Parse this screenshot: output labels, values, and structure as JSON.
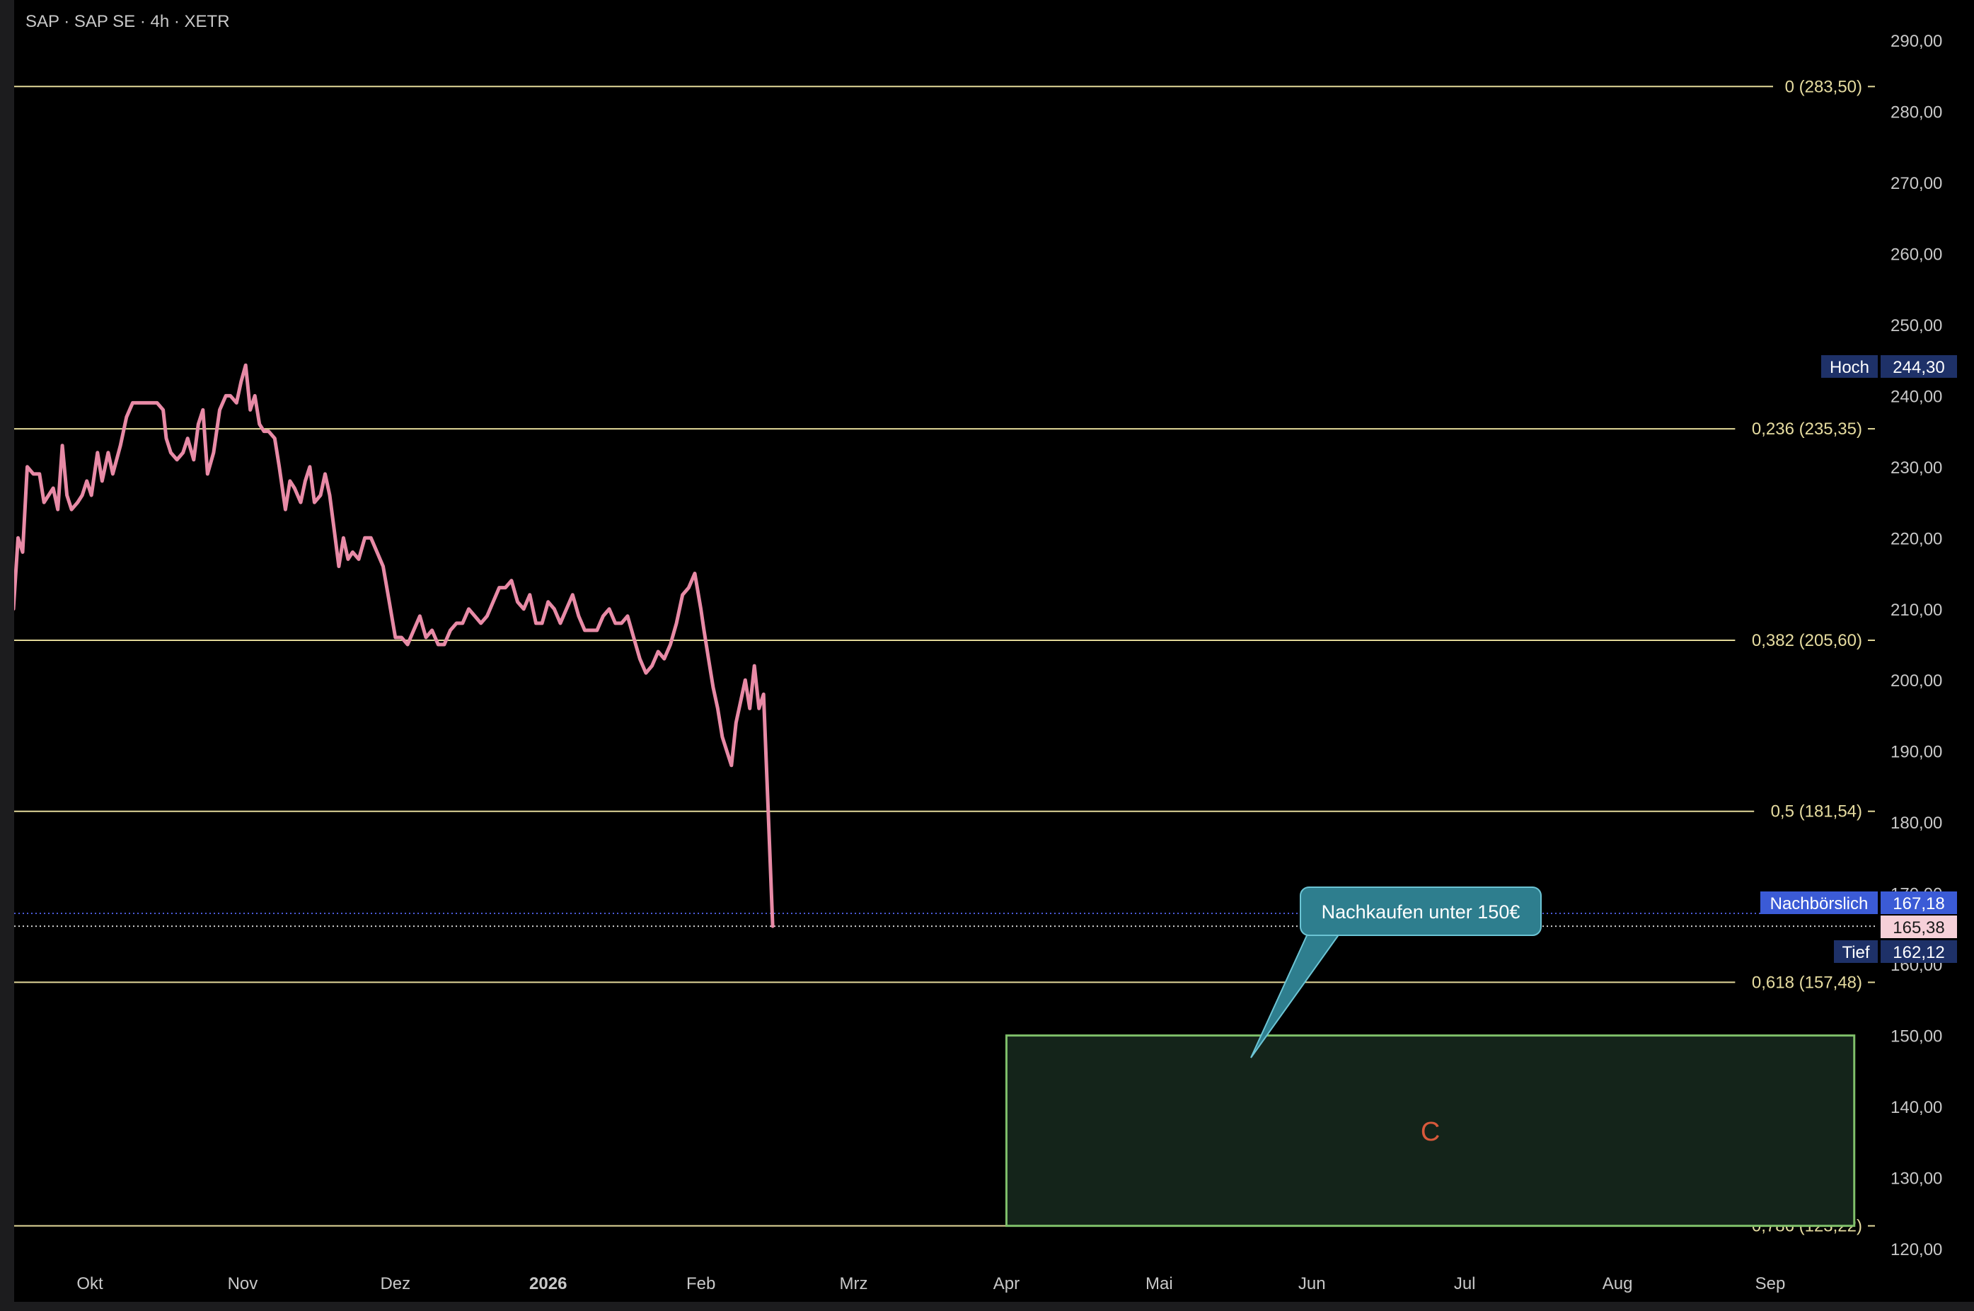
{
  "header": {
    "title": "SAP · SAP SE · 4h · XETR"
  },
  "colors": {
    "price_line": "#e88aa6",
    "fib_line": "#e3d99a",
    "zone_fill": "#14241a",
    "zone_border": "#7fbf6a",
    "callout_fill": "#2e7e8e",
    "callout_border": "#6cc4d4",
    "hoch_badge": "#1e3168",
    "tief_badge": "#1e3168",
    "nach_badge": "#3b5bd6",
    "last_badge": "#f6d0d8"
  },
  "price_badges": {
    "hoch": {
      "label": "Hoch",
      "value": "244,30"
    },
    "nachboerslich": {
      "label": "Nachbörslich",
      "value": "167,18"
    },
    "last": {
      "value": "165,38"
    },
    "tief": {
      "label": "Tief",
      "value": "162,12"
    }
  },
  "annotations": {
    "callout": "Nachkaufen unter 150€",
    "zone_label": "C"
  },
  "chart_data": {
    "type": "line",
    "title": "SAP · SAP SE · 4h · XETR",
    "ylim": [
      116,
      294
    ],
    "y_ticks": [
      "290,00",
      "280,00",
      "270,00",
      "260,00",
      "250,00",
      "240,00",
      "230,00",
      "220,00",
      "210,00",
      "200,00",
      "190,00",
      "180,00",
      "170,00",
      "160,00",
      "150,00",
      "140,00",
      "130,00",
      "120,00"
    ],
    "x_ticks": [
      {
        "label": "Okt",
        "t": 0.5
      },
      {
        "label": "Nov",
        "t": 1.5
      },
      {
        "label": "Dez",
        "t": 2.5
      },
      {
        "label": "2026",
        "t": 3.5
      },
      {
        "label": "Feb",
        "t": 4.5
      },
      {
        "label": "Mrz",
        "t": 5.5
      },
      {
        "label": "Apr",
        "t": 6.5
      },
      {
        "label": "Mai",
        "t": 7.5
      },
      {
        "label": "Jun",
        "t": 8.5
      },
      {
        "label": "Jul",
        "t": 9.5
      },
      {
        "label": "Aug",
        "t": 10.5
      },
      {
        "label": "Sep",
        "t": 11.5
      }
    ],
    "fib_levels": [
      {
        "label": "0 (283,50)",
        "value": 283.5
      },
      {
        "label": "0,236 (235,35)",
        "value": 235.35
      },
      {
        "label": "0,382 (205,60)",
        "value": 205.6
      },
      {
        "label": "0,5 (181,54)",
        "value": 181.54
      },
      {
        "label": "0,618 (157,48)",
        "value": 157.48
      },
      {
        "label": "0,786 (123,22)",
        "value": 123.22
      }
    ],
    "last_price": 165.38,
    "after_hours_price": 167.18,
    "zone": {
      "t_start": 6.5,
      "t_end": 12.05,
      "y_top": 150.0,
      "y_bottom": 123.22
    },
    "callout_point": {
      "t": 8.35,
      "y": 147
    },
    "series": [
      {
        "points": [
          [
            0.0,
            210
          ],
          [
            0.03,
            220
          ],
          [
            0.06,
            218
          ],
          [
            0.09,
            230
          ],
          [
            0.13,
            229
          ],
          [
            0.17,
            229
          ],
          [
            0.2,
            225
          ],
          [
            0.23,
            226
          ],
          [
            0.26,
            227
          ],
          [
            0.29,
            224
          ],
          [
            0.32,
            233
          ],
          [
            0.35,
            226
          ],
          [
            0.38,
            224
          ],
          [
            0.42,
            225
          ],
          [
            0.45,
            226
          ],
          [
            0.48,
            228
          ],
          [
            0.51,
            226
          ],
          [
            0.55,
            232
          ],
          [
            0.58,
            228
          ],
          [
            0.62,
            232
          ],
          [
            0.65,
            229
          ],
          [
            0.7,
            233
          ],
          [
            0.74,
            237
          ],
          [
            0.78,
            239
          ],
          [
            0.82,
            239
          ],
          [
            0.86,
            239
          ],
          [
            0.9,
            239
          ],
          [
            0.94,
            239
          ],
          [
            0.98,
            238
          ],
          [
            1.0,
            234
          ],
          [
            1.03,
            232
          ],
          [
            1.07,
            231
          ],
          [
            1.11,
            232
          ],
          [
            1.14,
            234
          ],
          [
            1.18,
            231
          ],
          [
            1.21,
            236
          ],
          [
            1.24,
            238
          ],
          [
            1.27,
            229
          ],
          [
            1.31,
            232
          ],
          [
            1.35,
            238
          ],
          [
            1.39,
            240
          ],
          [
            1.42,
            240
          ],
          [
            1.46,
            239
          ],
          [
            1.49,
            242
          ],
          [
            1.52,
            244.3
          ],
          [
            1.55,
            238
          ],
          [
            1.58,
            240
          ],
          [
            1.61,
            236
          ],
          [
            1.64,
            235
          ],
          [
            1.67,
            235
          ],
          [
            1.71,
            234
          ],
          [
            1.74,
            230
          ],
          [
            1.78,
            224
          ],
          [
            1.81,
            228
          ],
          [
            1.84,
            227
          ],
          [
            1.88,
            225
          ],
          [
            1.91,
            228
          ],
          [
            1.94,
            230
          ],
          [
            1.97,
            225
          ],
          [
            2.01,
            226
          ],
          [
            2.04,
            229
          ],
          [
            2.07,
            226
          ],
          [
            2.1,
            221
          ],
          [
            2.13,
            216
          ],
          [
            2.16,
            220
          ],
          [
            2.19,
            217
          ],
          [
            2.22,
            218
          ],
          [
            2.26,
            217
          ],
          [
            2.3,
            220
          ],
          [
            2.34,
            220
          ],
          [
            2.38,
            218
          ],
          [
            2.42,
            216
          ],
          [
            2.46,
            211
          ],
          [
            2.5,
            206
          ],
          [
            2.54,
            206
          ],
          [
            2.58,
            205
          ],
          [
            2.62,
            207
          ],
          [
            2.66,
            209
          ],
          [
            2.7,
            206
          ],
          [
            2.74,
            207
          ],
          [
            2.78,
            205
          ],
          [
            2.82,
            205
          ],
          [
            2.86,
            207
          ],
          [
            2.9,
            208
          ],
          [
            2.94,
            208
          ],
          [
            2.98,
            210
          ],
          [
            3.02,
            209
          ],
          [
            3.06,
            208
          ],
          [
            3.1,
            209
          ],
          [
            3.14,
            211
          ],
          [
            3.18,
            213
          ],
          [
            3.22,
            213
          ],
          [
            3.26,
            214
          ],
          [
            3.3,
            211
          ],
          [
            3.34,
            210
          ],
          [
            3.38,
            212
          ],
          [
            3.42,
            208
          ],
          [
            3.46,
            208
          ],
          [
            3.5,
            211
          ],
          [
            3.54,
            210
          ],
          [
            3.58,
            208
          ],
          [
            3.62,
            210
          ],
          [
            3.66,
            212
          ],
          [
            3.7,
            209
          ],
          [
            3.74,
            207
          ],
          [
            3.78,
            207
          ],
          [
            3.82,
            207
          ],
          [
            3.86,
            209
          ],
          [
            3.9,
            210
          ],
          [
            3.94,
            208
          ],
          [
            3.98,
            208
          ],
          [
            4.02,
            209
          ],
          [
            4.06,
            206
          ],
          [
            4.1,
            203
          ],
          [
            4.14,
            201
          ],
          [
            4.18,
            202
          ],
          [
            4.22,
            204
          ],
          [
            4.26,
            203
          ],
          [
            4.3,
            205
          ],
          [
            4.34,
            208
          ],
          [
            4.38,
            212
          ],
          [
            4.42,
            213
          ],
          [
            4.46,
            215
          ],
          [
            4.5,
            210
          ],
          [
            4.52,
            207
          ],
          [
            4.55,
            203
          ],
          [
            4.58,
            199
          ],
          [
            4.61,
            196
          ],
          [
            4.64,
            192
          ],
          [
            4.67,
            190
          ],
          [
            4.7,
            188
          ],
          [
            4.73,
            194
          ],
          [
            4.76,
            197
          ],
          [
            4.79,
            200
          ],
          [
            4.82,
            196
          ],
          [
            4.85,
            202
          ],
          [
            4.88,
            196
          ],
          [
            4.91,
            198
          ],
          [
            4.94,
            182
          ],
          [
            4.97,
            165.38
          ]
        ]
      }
    ]
  }
}
